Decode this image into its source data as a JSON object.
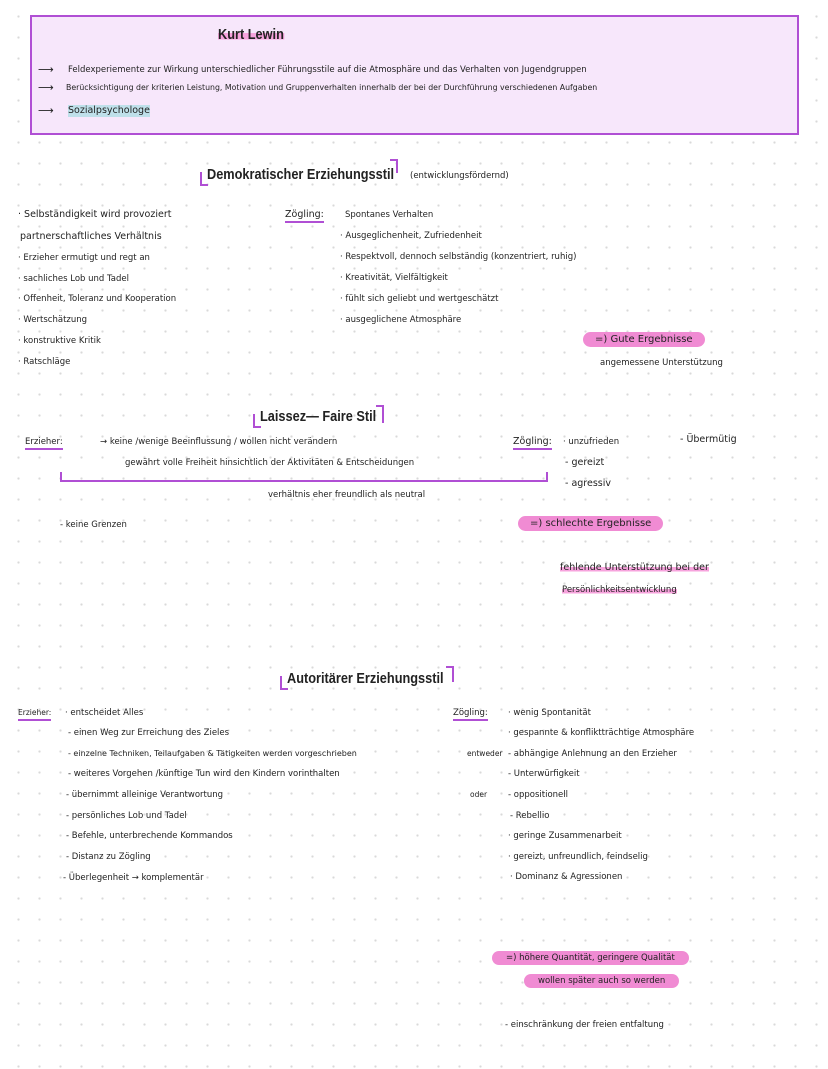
{
  "header": {
    "title": "Kurt Lewin",
    "lines": [
      "Feldexperiemente zur Wirkung unterschiedlicher Führungsstile auf die Atmosphäre und das Verhalten von Jugendgruppen",
      "Berücksichtigung der kriterien Leistung, Motivation und Gruppenverhalten innerhalb der bei der Durchführung verschiedenen Aufgaben",
      "Sozialpsychologe"
    ]
  },
  "demokratisch": {
    "title": "Demokratischer Erziehungsstil",
    "subtitle": "(entwicklungsfördernd)",
    "left": [
      "· Selbständigkeit wird provoziert",
      "partnerschaftliches Verhältnis",
      "· Erzieher ermutigt und regt an",
      "· sachliches Lob und Tadel",
      "· Offenheit, Toleranz und Kooperation",
      "· Wertschätzung",
      "· konstruktive Kritik",
      "· Ratschläge"
    ],
    "zoegling_label": "Zögling:",
    "right": [
      "Spontanes Verhalten",
      "· Ausgeglichenheit, Zufriedenheit",
      "· Respektvoll, dennoch selbständig   (konzentriert, ruhig)",
      "· Kreativität, Vielfältigkeit",
      "· fühlt sich geliebt und wertgeschätzt",
      "· ausgeglichene Atmosphäre"
    ],
    "result": "=) Gute Ergebnisse",
    "result_note": "angemessene Unterstützung"
  },
  "laissez": {
    "title": "Laissez— Faire Stil",
    "erzieher_label": "Erzieher:",
    "erzieher_lines": [
      "→ keine /wenige Beeinflussung / wollen nicht verändern",
      "gewährt volle Freiheit hinsichtlich der Aktivitäten & Entscheidungen"
    ],
    "bracket_note": "verhältnis eher freundlich als neutral",
    "zoegling_label": "Zögling:",
    "zoegling": [
      "· unzufrieden",
      "- gereizt",
      "- agressiv"
    ],
    "extra": "- Übermütig",
    "no_limits": "- keine Grenzen",
    "result": "=) schlechte Ergebnisse",
    "result_note": [
      "fehlende Unterstützung bei der",
      "Persönlichkeitsentwicklung"
    ]
  },
  "autoritaer": {
    "title": "Autoritärer Erziehungsstil",
    "erzieher_label": "Erzieher:",
    "erzieher": [
      "· entscheidet Alles",
      "- einen Weg zur Erreichung des Zieles",
      "- einzelne Techniken, Teilaufgaben & Tätigkeiten werden vorgeschrieben",
      "- weiteres Vorgehen /künftige Tun wird den Kindern vorinthalten",
      "- übernimmt alleinige Verantwortung",
      "- persönliches Lob und Tadel",
      "- Befehle, unterbrechende Kommandos",
      "- Distanz zu Zögling",
      "- Überlegenheit → komplementär"
    ],
    "zoegling_label": "Zögling:",
    "zoegling": [
      "· wenig Spontanität",
      "· gespannte & konfliktträchtige Atmosphäre",
      "- abhängige Anlehnung an den Erzieher",
      "- Unterwürfigkeit",
      "- oppositionell",
      "- Rebellio",
      "· geringe Zusammenarbeit",
      "· gereizt, unfreundlich, feindselig",
      "· Dominanz & Agressionen"
    ],
    "entweder": "entweder",
    "oder": "oder",
    "result": [
      "=)  höhere Quantität, geringere Qualität",
      "wollen später auch so werden"
    ],
    "note": "- einschränkung der freien entfaltung"
  },
  "colors": {
    "accent": "#b04fd4",
    "box_bg": "#f7e7fb",
    "highlight": "#f08bd3"
  }
}
